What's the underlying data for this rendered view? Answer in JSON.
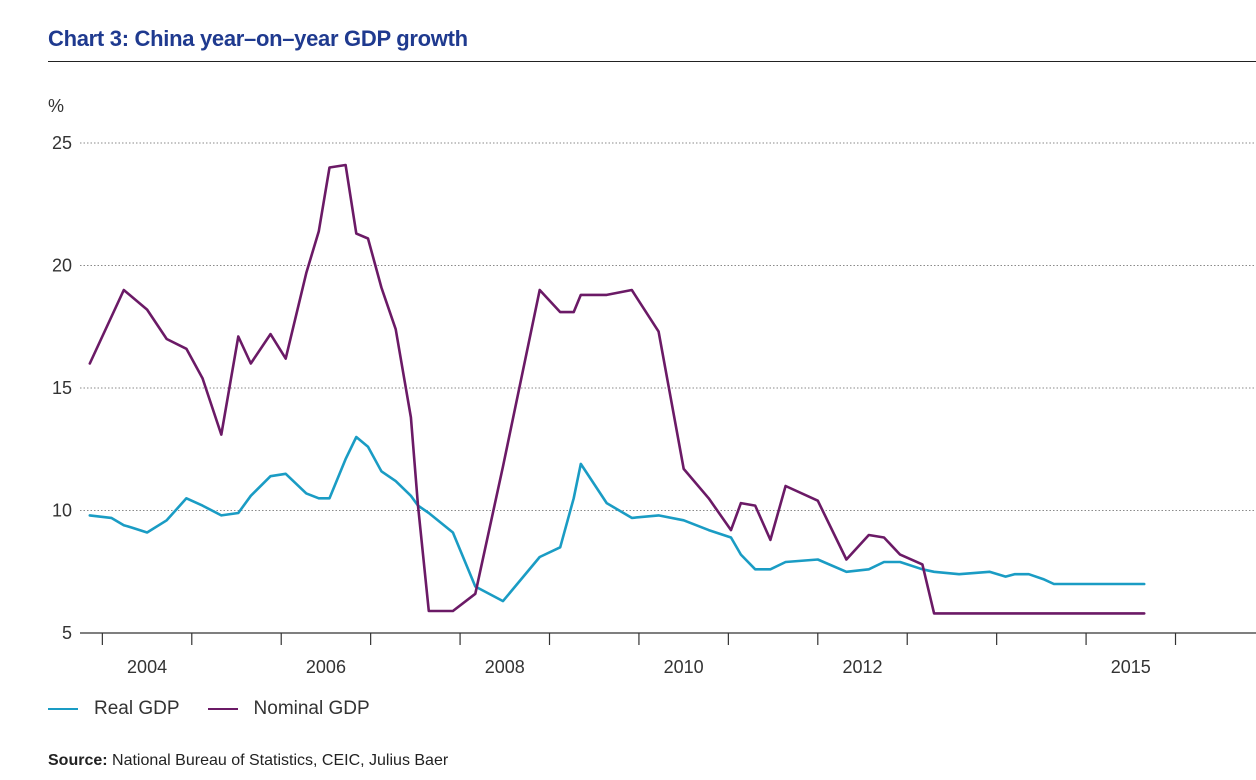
{
  "header": {
    "title": "Chart 3: China year–on–year GDP growth"
  },
  "footer": {
    "source_label": "Source:",
    "source_text": "National Bureau of Statistics, CEIC, Julius Baer"
  },
  "colors": {
    "title": "#1f3a8f",
    "real_gdp": "#1a9cc4",
    "nominal_gdp": "#6b1a66",
    "grid": "#8a8a8a"
  },
  "chart_data": {
    "type": "line",
    "title": "Chart 3: China year–on–year GDP growth",
    "ylabel": "%",
    "xlabel": "",
    "ylim": [
      5,
      25
    ],
    "xlim": [
      2003.25,
      2016.4
    ],
    "yticks": [
      5,
      10,
      15,
      20,
      25
    ],
    "xticks": [
      2004,
      2006,
      2008,
      2010,
      2012,
      2015
    ],
    "xtick_positions": [
      2004,
      2006,
      2008,
      2010,
      2012,
      2015
    ],
    "grid": "horizontal dotted",
    "legend": "bottom-left",
    "series": [
      {
        "name": "Real GDP",
        "color": "#1a9cc4",
        "x": [
          2003.36,
          2003.6,
          2003.74,
          2003.83,
          2004.0,
          2004.22,
          2004.44,
          2004.62,
          2004.83,
          2005.02,
          2005.16,
          2005.38,
          2005.55,
          2005.78,
          2005.92,
          2006.04,
          2006.22,
          2006.34,
          2006.47,
          2006.62,
          2006.78,
          2006.95,
          2007.03,
          2007.15,
          2007.42,
          2007.67,
          2007.98,
          2008.39,
          2008.62,
          2008.77,
          2008.85,
          2009.14,
          2009.42,
          2009.72,
          2010.0,
          2010.28,
          2010.53,
          2010.64,
          2010.8,
          2010.97,
          2011.14,
          2011.5,
          2011.82,
          2012.07,
          2012.24,
          2012.42,
          2012.67,
          2012.8,
          2013.08,
          2013.42,
          2013.6,
          2013.7,
          2013.86,
          2014.02,
          2014.14,
          2014.36,
          2014.54,
          2014.75,
          2014.95,
          2015.0,
          2015.15
        ],
        "values": [
          9.8,
          9.7,
          9.4,
          9.3,
          9.1,
          9.6,
          10.5,
          10.2,
          9.8,
          9.9,
          10.6,
          11.4,
          11.5,
          10.7,
          10.5,
          10.5,
          12.1,
          13.0,
          12.6,
          11.6,
          11.2,
          10.6,
          10.2,
          9.9,
          9.1,
          6.9,
          6.3,
          8.1,
          8.5,
          10.5,
          11.9,
          10.3,
          9.7,
          9.8,
          9.6,
          9.2,
          8.9,
          8.2,
          7.6,
          7.6,
          7.9,
          8.0,
          7.5,
          7.6,
          7.9,
          7.9,
          7.6,
          7.5,
          7.4,
          7.5,
          7.3,
          7.4,
          7.4,
          7.2,
          7.0,
          7.0,
          7.0,
          7.0,
          7.0,
          7.0,
          7.0
        ]
      },
      {
        "name": "Nominal GDP",
        "color": "#6b1a66",
        "x": [
          2003.36,
          2003.74,
          2004.0,
          2004.22,
          2004.44,
          2004.62,
          2004.83,
          2005.02,
          2005.16,
          2005.38,
          2005.55,
          2005.78,
          2005.92,
          2006.04,
          2006.22,
          2006.34,
          2006.47,
          2006.62,
          2006.78,
          2006.95,
          2007.03,
          2007.15,
          2007.42,
          2007.67,
          2007.98,
          2008.39,
          2008.62,
          2008.77,
          2008.85,
          2009.14,
          2009.42,
          2009.72,
          2010.0,
          2010.28,
          2010.53,
          2010.64,
          2010.8,
          2010.97,
          2011.14,
          2011.5,
          2011.82,
          2012.07,
          2012.24,
          2012.42,
          2012.67,
          2012.8,
          2013.08,
          2013.42,
          2013.6,
          2013.7,
          2013.86,
          2014.02,
          2014.14,
          2014.36,
          2014.54,
          2014.75,
          2014.95,
          2015.0,
          2015.15
        ],
        "values": [
          16.0,
          19.0,
          18.2,
          17.0,
          16.6,
          15.4,
          13.1,
          17.1,
          16.0,
          17.2,
          16.2,
          19.7,
          21.4,
          24.0,
          24.1,
          21.3,
          21.1,
          19.1,
          17.4,
          13.8,
          10.2,
          5.9,
          5.9,
          6.6,
          11.8,
          19.0,
          18.1,
          18.1,
          18.8,
          18.8,
          19.0,
          17.3,
          11.7,
          10.5,
          9.2,
          10.3,
          10.2,
          8.8,
          11.0,
          10.4,
          8.0,
          9.0,
          8.9,
          8.2,
          7.8,
          5.8,
          5.8,
          5.8,
          5.8,
          5.8,
          5.8,
          5.8,
          5.8,
          5.8,
          5.8,
          5.8,
          5.8,
          5.8,
          5.8
        ]
      }
    ]
  },
  "legend": {
    "real_label": "Real GDP",
    "nominal_label": "Nominal GDP"
  }
}
